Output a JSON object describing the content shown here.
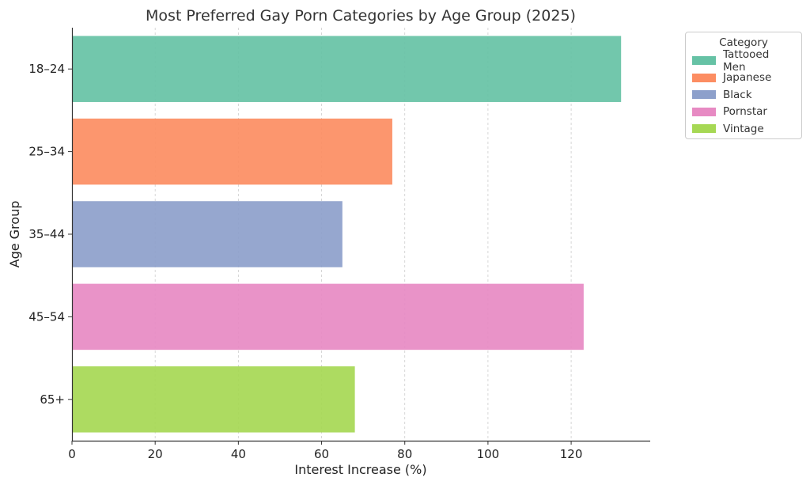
{
  "chart_data": {
    "type": "bar",
    "orientation": "horizontal",
    "title": "Most Preferred Gay Porn Categories by Age Group (2025)",
    "xlabel": "Interest Increase (%)",
    "ylabel": "Age Group",
    "categories": [
      "18–24",
      "25–34",
      "35–44",
      "45–54",
      "65+"
    ],
    "values": [
      132,
      77,
      65,
      123,
      68
    ],
    "bar_categories": [
      "Tattooed Men",
      "Japanese",
      "Black",
      "Pornstar",
      "Vintage"
    ],
    "colors": [
      "#66c2a5",
      "#fc8d62",
      "#8da0cb",
      "#e78ac3",
      "#a6d854"
    ],
    "xlim": [
      0,
      139
    ],
    "xticks": [
      0,
      20,
      40,
      60,
      80,
      100,
      120
    ],
    "grid": "x-dashed",
    "legend": {
      "title": "Category",
      "placement": "upper-right-outside",
      "entries": [
        "Tattooed Men",
        "Japanese",
        "Black",
        "Pornstar",
        "Vintage"
      ]
    }
  }
}
